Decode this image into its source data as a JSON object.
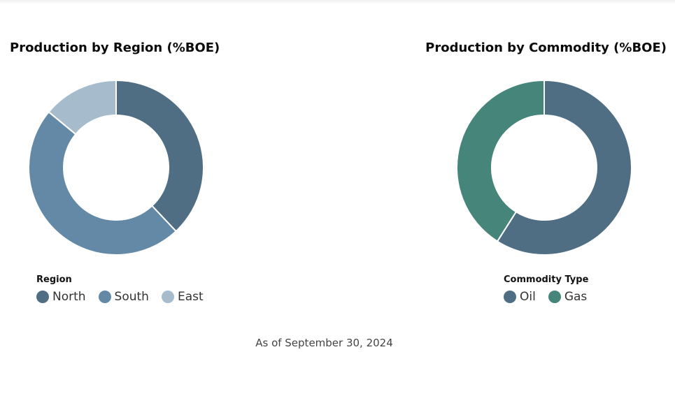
{
  "chart_data": [
    {
      "type": "pie",
      "subtype": "donut",
      "title": "Production by Region (%BOE)",
      "legend_title": "Region",
      "legend_position": "bottom-left",
      "categories": [
        "North",
        "South",
        "East"
      ],
      "values": [
        38,
        48,
        14
      ],
      "colors": [
        "#4f6e84",
        "#6389a6",
        "#a6bccd"
      ]
    },
    {
      "type": "pie",
      "subtype": "donut",
      "title": "Production by Commodity (%BOE)",
      "legend_title": "Commodity Type",
      "legend_position": "bottom-left",
      "categories": [
        "Oil",
        "Gas"
      ],
      "values": [
        59,
        41
      ],
      "colors": [
        "#4f6e84",
        "#45857a"
      ]
    }
  ],
  "footnote": "As of September 30, 2024"
}
